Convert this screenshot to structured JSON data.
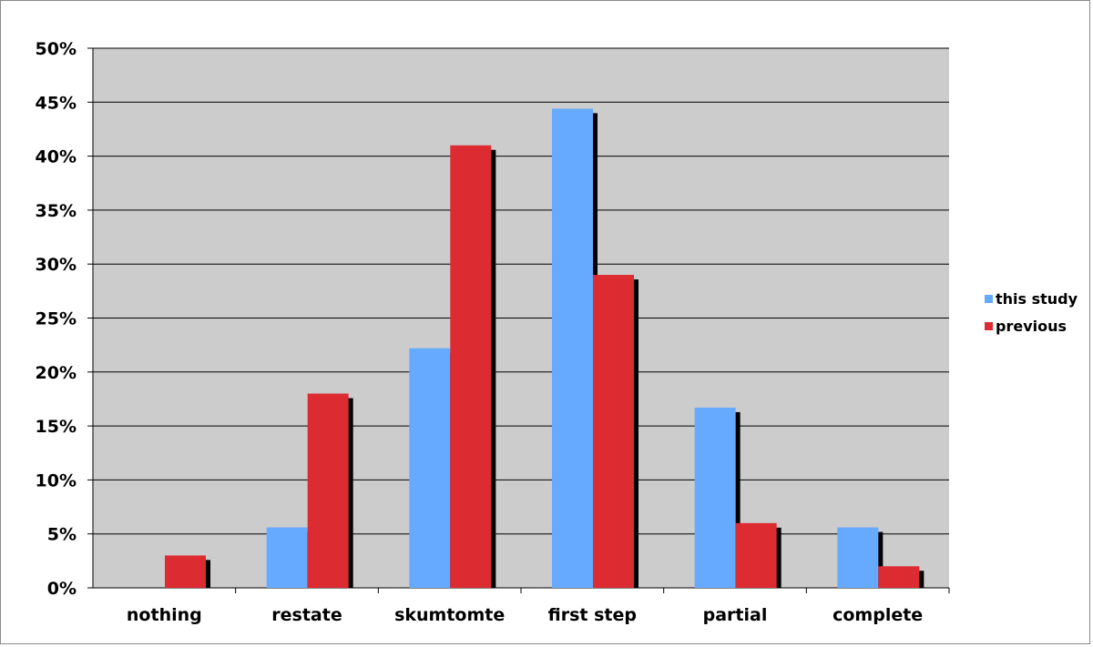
{
  "chart_data": {
    "type": "bar",
    "categories": [
      "nothing",
      "restate",
      "skumtomte",
      "first step",
      "partial",
      "complete"
    ],
    "series": [
      {
        "name": "this study",
        "color": "#66aaff",
        "values": [
          0,
          5.6,
          22.2,
          44.4,
          16.7,
          5.6
        ]
      },
      {
        "name": "previous",
        "color": "#dd2b32",
        "values": [
          3,
          18,
          41,
          29,
          6,
          2
        ]
      }
    ],
    "y_ticks": [
      "0%",
      "5%",
      "10%",
      "15%",
      "20%",
      "25%",
      "30%",
      "35%",
      "40%",
      "45%",
      "50%"
    ],
    "ylim": [
      0,
      50
    ],
    "y_unit": "%",
    "grid": true,
    "plot_background": "#cccccc",
    "legend_position": "right"
  }
}
